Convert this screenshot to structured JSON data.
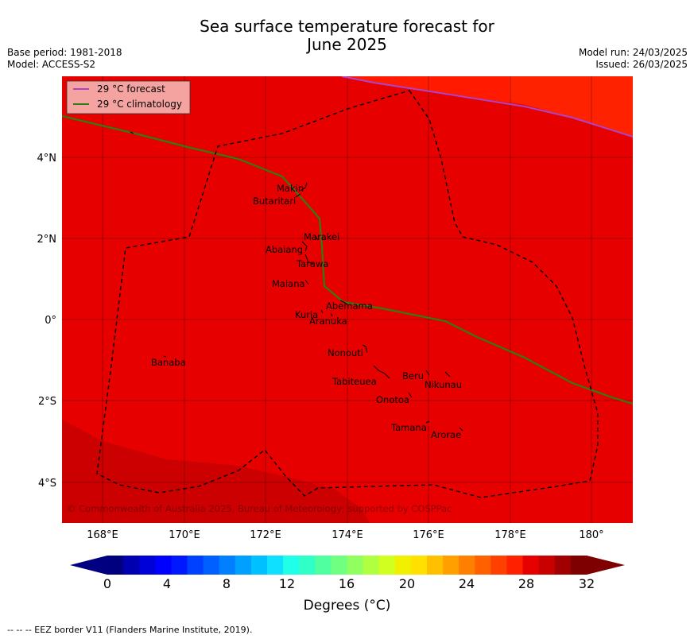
{
  "title_line1": "Sea surface temperature forecast for",
  "title_line2": "June 2025",
  "meta_left": [
    "Base period: 1981-2018",
    "Model: ACCESS-S2"
  ],
  "meta_right": [
    "Model run: 24/03/2025",
    "Issued: 26/03/2025"
  ],
  "legend": {
    "forecast_label": "29 °C  forecast",
    "forecast_color": "#aa44cc",
    "climatology_label": "29 °C  climatology",
    "climatology_color": "#2e7d12"
  },
  "map": {
    "lon_range": [
      167,
      181
    ],
    "lat_range": [
      -5,
      6
    ],
    "lon_ticks": [
      "168°E",
      "170°E",
      "172°E",
      "174°E",
      "176°E",
      "178°E",
      "180°"
    ],
    "lat_ticks": [
      "4°N",
      "2°N",
      "0°",
      "2°S",
      "4°S"
    ],
    "copyright": "© Commonwealth of Australia 2025, Bureau of Meteorology; supported by COSPPac",
    "places": [
      {
        "name": "Makin"
      },
      {
        "name": "Butaritari"
      },
      {
        "name": "Marakei"
      },
      {
        "name": "Abaiang"
      },
      {
        "name": "Tarawa"
      },
      {
        "name": "Maiana"
      },
      {
        "name": "Abemama"
      },
      {
        "name": "Kuria"
      },
      {
        "name": "Aranuka"
      },
      {
        "name": "Nonouti"
      },
      {
        "name": "Banaba"
      },
      {
        "name": "Beru"
      },
      {
        "name": "Nikunau"
      },
      {
        "name": "Tabiteuea"
      },
      {
        "name": "Onotoa"
      },
      {
        "name": "Tamana"
      },
      {
        "name": "Arorae"
      }
    ],
    "fill_colors": {
      "main": "#e60000",
      "warmer_ne": "#ff1a00",
      "cooler_sw": "#cc0000",
      "ne_band": "#ff2200"
    }
  },
  "colorbar": {
    "ticks": [
      "0",
      "4",
      "8",
      "12",
      "16",
      "20",
      "24",
      "28",
      "32"
    ],
    "label": "Degrees ($^\\circ$C)",
    "label_display": "Degrees (°C)",
    "colors": [
      "#00007f",
      "#0000b0",
      "#0000d8",
      "#0000ff",
      "#0018ff",
      "#0040ff",
      "#0060ff",
      "#0080ff",
      "#00a0ff",
      "#00c0ff",
      "#10e0ff",
      "#20ffe8",
      "#30ffc8",
      "#50ffa0",
      "#70ff80",
      "#90ff60",
      "#b0ff40",
      "#d0ff20",
      "#f0f000",
      "#ffe000",
      "#ffc000",
      "#ffa000",
      "#ff8000",
      "#ff6000",
      "#ff4000",
      "#ff2000",
      "#e60000",
      "#c80000",
      "#a00000",
      "#7f0000"
    ],
    "low_color": "#000080",
    "high_color": "#7f0000"
  },
  "footer": "--  --  -- EEZ border V11 (Flanders Marine Institute, 2019)."
}
